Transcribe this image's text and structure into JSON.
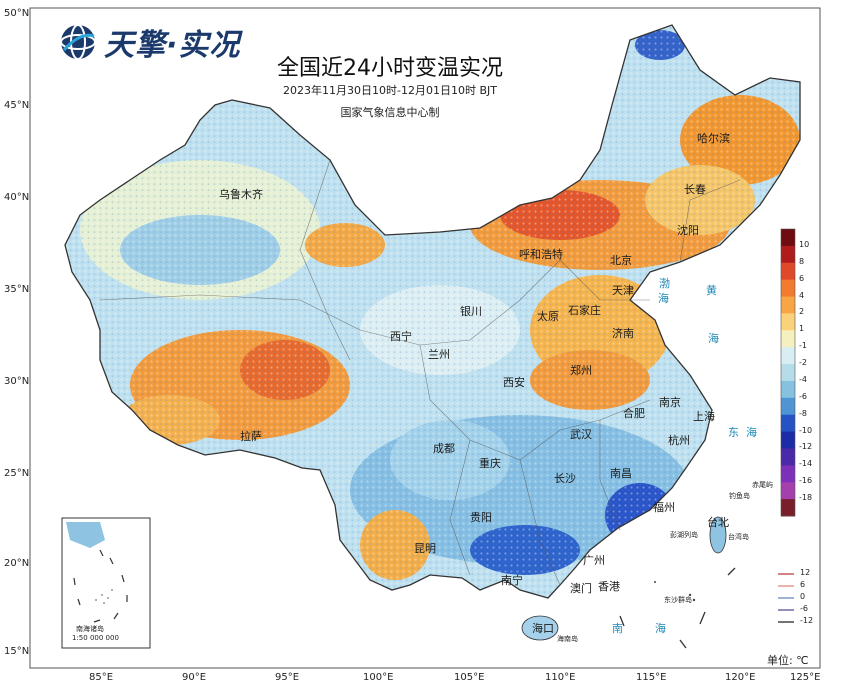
{
  "brand": {
    "name": "天擎·实况"
  },
  "title": "全国近24小时变温实况",
  "subtitle_time": "2023年11月30日10时-12月01日10时 BJT",
  "subtitle_org": "国家气象信息中心制",
  "lat_labels": [
    "50°N",
    "45°N",
    "40°N",
    "35°N",
    "30°N",
    "25°N",
    "20°N",
    "15°N"
  ],
  "lon_labels": [
    "85°E",
    "90°E",
    "95°E",
    "100°E",
    "105°E",
    "110°E",
    "115°E",
    "120°E",
    "125°E"
  ],
  "cities": [
    "乌鲁木齐",
    "哈尔滨",
    "长春",
    "沈阳",
    "呼和浩特",
    "北京",
    "天津",
    "石家庄",
    "太原",
    "银川",
    "济南",
    "西宁",
    "兰州",
    "郑州",
    "西安",
    "南京",
    "合肥",
    "上海",
    "拉萨",
    "成都",
    "武汉",
    "杭州",
    "重庆",
    "长沙",
    "南昌",
    "福州",
    "台北",
    "贵阳",
    "昆明",
    "南宁",
    "广州",
    "香港",
    "澳门",
    "海口"
  ],
  "seas": [
    "渤",
    "海",
    "黄",
    "海",
    "东",
    "海",
    "南",
    "海"
  ],
  "islands": [
    "赤尾屿",
    "钓鱼岛",
    "彭湖列岛",
    "东沙群岛",
    "海南岛",
    "台湾岛",
    "南海诸岛"
  ],
  "inset_scale": "1:50 000 000",
  "colorbar": {
    "ticks": [
      "10",
      "8",
      "6",
      "4",
      "2",
      "1",
      "-1",
      "-2",
      "-4",
      "-6",
      "-8",
      "-10",
      "-12",
      "-14",
      "-16",
      "-18"
    ],
    "colors": [
      "#6e0c12",
      "#b01c1c",
      "#e0482a",
      "#f47a2e",
      "#f7a545",
      "#f9d27a",
      "#f5f0c0",
      "#d9eef3",
      "#b6dcea",
      "#86c1e0",
      "#4f95d4",
      "#2552c4",
      "#1c2ca8",
      "#4a2aa8",
      "#7d30b8",
      "#a43fae",
      "#7a1f2a"
    ]
  },
  "contour_legend": {
    "labels": [
      "12",
      "6",
      "0",
      "-6",
      "-12"
    ],
    "colors": [
      "#c25a5a",
      "#e29a8f",
      "#7f9bc6",
      "#6a6aa0",
      "#444444"
    ]
  },
  "unit": "单位: ℃",
  "colors": {
    "warm_strong": "#e9562a",
    "warm": "#f6a13a",
    "neutral": "#f5eec0",
    "cool": "#b9dcec",
    "cold": "#4f8fd6",
    "coldest": "#2349c7"
  }
}
